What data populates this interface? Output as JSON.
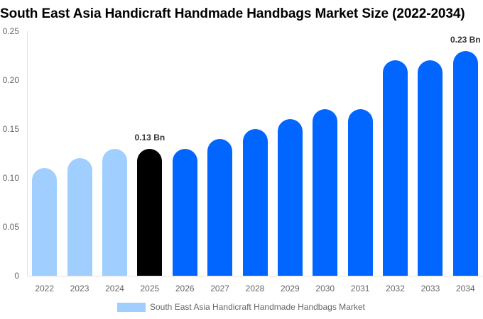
{
  "chart_data": {
    "type": "bar",
    "title": "South East Asia Handicraft Handmade Handbags Market Size (2022-2034)",
    "xlabel": "",
    "ylabel": "",
    "ylim": [
      0,
      0.25
    ],
    "yticks": [
      "0",
      "0.05",
      "0.10",
      "0.15",
      "0.20",
      "0.25"
    ],
    "grid": false,
    "legend_position": "bottom",
    "categories": [
      "2022",
      "2023",
      "2024",
      "2025",
      "2026",
      "2027",
      "2028",
      "2029",
      "2030",
      "2031",
      "2032",
      "2033",
      "2034"
    ],
    "series": [
      {
        "name": "South East Asia Handicraft Handmade Handbags Market",
        "values": [
          0.11,
          0.12,
          0.13,
          0.13,
          0.13,
          0.14,
          0.15,
          0.16,
          0.17,
          0.17,
          0.22,
          0.22,
          0.23
        ]
      }
    ],
    "bar_colors": [
      "#a0cfff",
      "#a0cfff",
      "#a0cfff",
      "#000000",
      "#0066ff",
      "#0066ff",
      "#0066ff",
      "#0066ff",
      "#0066ff",
      "#0066ff",
      "#0066ff",
      "#0066ff",
      "#0066ff"
    ],
    "annotations": [
      {
        "category": "2025",
        "text": "0.13 Bn"
      },
      {
        "category": "2034",
        "text": "0.23 Bn"
      }
    ]
  },
  "legend": {
    "label": "South East Asia Handicraft Handmade Handbags Market",
    "color": "#a0cfff"
  }
}
